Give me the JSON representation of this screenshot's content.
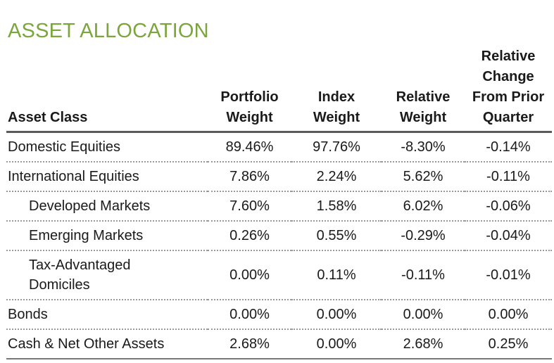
{
  "title": "ASSET ALLOCATION",
  "table": {
    "headers": [
      "Asset Class",
      "Portfolio\nWeight",
      "Index\nWeight",
      "Relative\nWeight",
      "Relative\nChange\nFrom Prior\nQuarter"
    ],
    "rows": [
      {
        "label": "Domestic Equities",
        "indent": false,
        "values": [
          "89.46%",
          "97.76%",
          "-8.30%",
          "-0.14%"
        ]
      },
      {
        "label": "International Equities",
        "indent": false,
        "values": [
          "7.86%",
          "2.24%",
          "5.62%",
          "-0.11%"
        ]
      },
      {
        "label": "Developed Markets",
        "indent": true,
        "values": [
          "7.60%",
          "1.58%",
          "6.02%",
          "-0.06%"
        ]
      },
      {
        "label": "Emerging Markets",
        "indent": true,
        "values": [
          "0.26%",
          "0.55%",
          "-0.29%",
          "-0.04%"
        ]
      },
      {
        "label": "Tax-Advantaged\nDomiciles",
        "indent": true,
        "values": [
          "0.00%",
          "0.11%",
          "-0.11%",
          "-0.01%"
        ]
      },
      {
        "label": "Bonds",
        "indent": false,
        "values": [
          "0.00%",
          "0.00%",
          "0.00%",
          "0.00%"
        ]
      },
      {
        "label": "Cash & Net Other Assets",
        "indent": false,
        "values": [
          "2.68%",
          "0.00%",
          "2.68%",
          "0.25%"
        ]
      }
    ]
  }
}
